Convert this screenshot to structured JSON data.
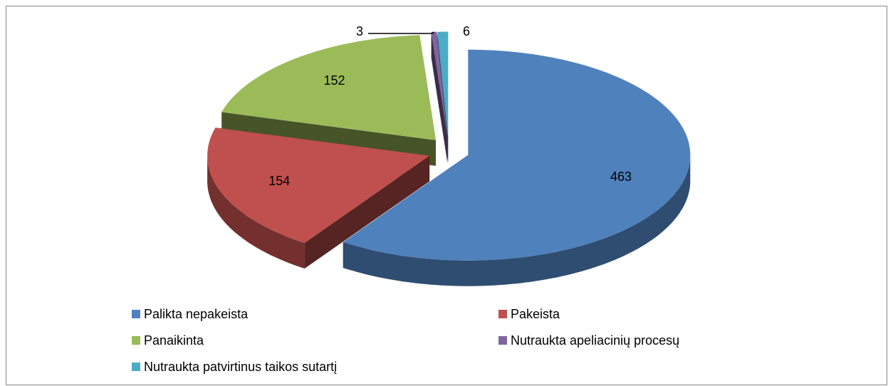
{
  "chart_data": {
    "type": "pie",
    "categories": [
      "Palikta nepakeista",
      "Pakeista",
      "Panaikinta",
      "Nutraukta apeliacinių procesų",
      "Nutraukta patvirtinus taikos sutartį"
    ],
    "values": [
      463,
      154,
      152,
      3,
      6
    ],
    "colors": [
      "#4f81bd",
      "#c0504d",
      "#9bbb59",
      "#8064a2",
      "#4bacc6"
    ],
    "legend": "bottom"
  }
}
